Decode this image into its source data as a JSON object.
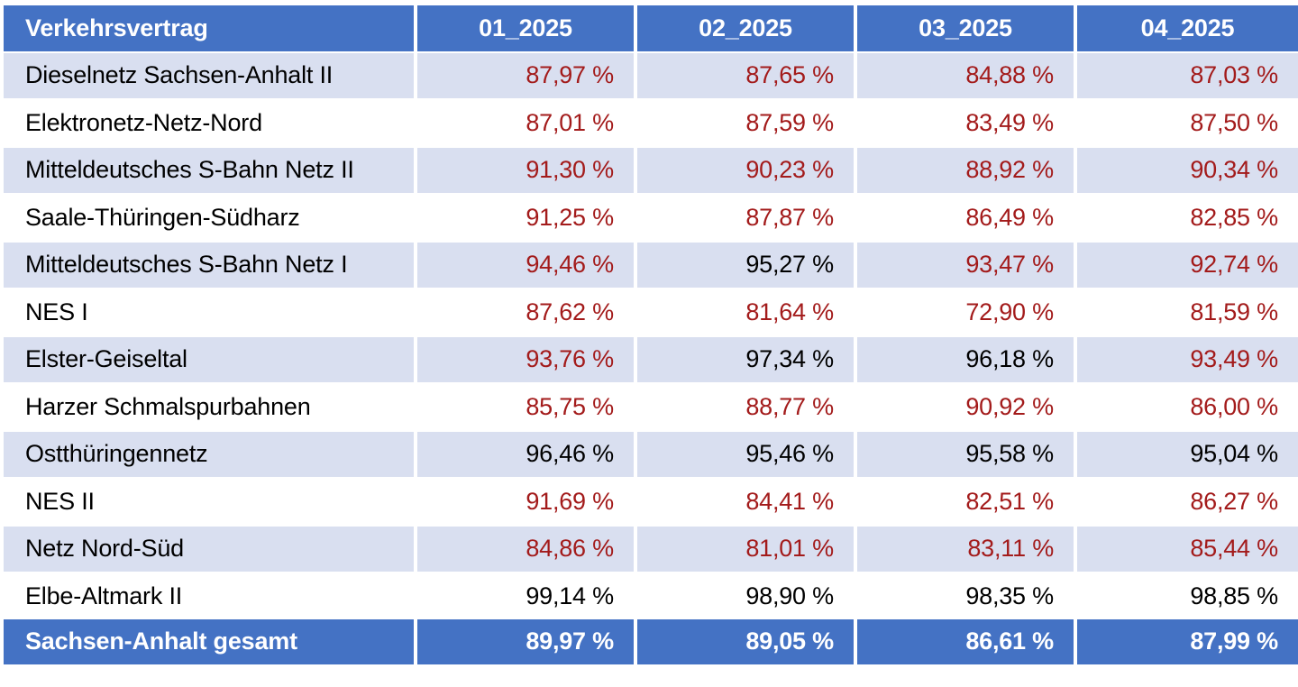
{
  "table": {
    "headers": [
      "Verkehrsvertrag",
      "01_2025",
      "02_2025",
      "03_2025",
      "04_2025"
    ],
    "colors": {
      "header_bg": "#4472c4",
      "band_bg": "#d9dff0",
      "below_target_text": "#a31b1b",
      "normal_text": "#000000",
      "header_text": "#ffffff"
    },
    "rows": [
      {
        "name": "Dieselnetz Sachsen-Anhalt II",
        "values": [
          "87,97 %",
          "87,65 %",
          "84,88 %",
          "87,03 %"
        ],
        "below": [
          true,
          true,
          true,
          true
        ]
      },
      {
        "name": "Elektronetz-Netz-Nord",
        "values": [
          "87,01 %",
          "87,59 %",
          "83,49 %",
          "87,50 %"
        ],
        "below": [
          true,
          true,
          true,
          true
        ]
      },
      {
        "name": "Mitteldeutsches S-Bahn Netz II",
        "values": [
          "91,30 %",
          "90,23 %",
          "88,92 %",
          "90,34 %"
        ],
        "below": [
          true,
          true,
          true,
          true
        ]
      },
      {
        "name": "Saale-Thüringen-Südharz",
        "values": [
          "91,25 %",
          "87,87 %",
          "86,49 %",
          "82,85 %"
        ],
        "below": [
          true,
          true,
          true,
          true
        ]
      },
      {
        "name": "Mitteldeutsches S-Bahn Netz I",
        "values": [
          "94,46 %",
          "95,27 %",
          "93,47 %",
          "92,74 %"
        ],
        "below": [
          true,
          false,
          true,
          true
        ]
      },
      {
        "name": "NES I",
        "values": [
          "87,62 %",
          "81,64 %",
          "72,90 %",
          "81,59 %"
        ],
        "below": [
          true,
          true,
          true,
          true
        ]
      },
      {
        "name": "Elster-Geiseltal",
        "values": [
          "93,76 %",
          "97,34 %",
          "96,18 %",
          "93,49 %"
        ],
        "below": [
          true,
          false,
          false,
          true
        ]
      },
      {
        "name": "Harzer Schmalspurbahnen",
        "values": [
          "85,75 %",
          "88,77 %",
          "90,92 %",
          "86,00 %"
        ],
        "below": [
          true,
          true,
          true,
          true
        ]
      },
      {
        "name": "Ostthüringennetz",
        "values": [
          "96,46 %",
          "95,46 %",
          "95,58 %",
          "95,04 %"
        ],
        "below": [
          false,
          false,
          false,
          false
        ]
      },
      {
        "name": "NES II",
        "values": [
          "91,69 %",
          "84,41 %",
          "82,51 %",
          "86,27 %"
        ],
        "below": [
          true,
          true,
          true,
          true
        ]
      },
      {
        "name": "Netz Nord-Süd",
        "values": [
          "84,86 %",
          "81,01 %",
          "83,11 %",
          "85,44 %"
        ],
        "below": [
          true,
          true,
          true,
          true
        ]
      },
      {
        "name": "Elbe-Altmark II",
        "values": [
          "99,14 %",
          "98,90 %",
          "98,35 %",
          "98,85 %"
        ],
        "below": [
          false,
          false,
          false,
          false
        ]
      }
    ],
    "total": {
      "name": "Sachsen-Anhalt gesamt",
      "values": [
        "89,97 %",
        "89,05 %",
        "86,61 %",
        "87,99 %"
      ]
    }
  }
}
